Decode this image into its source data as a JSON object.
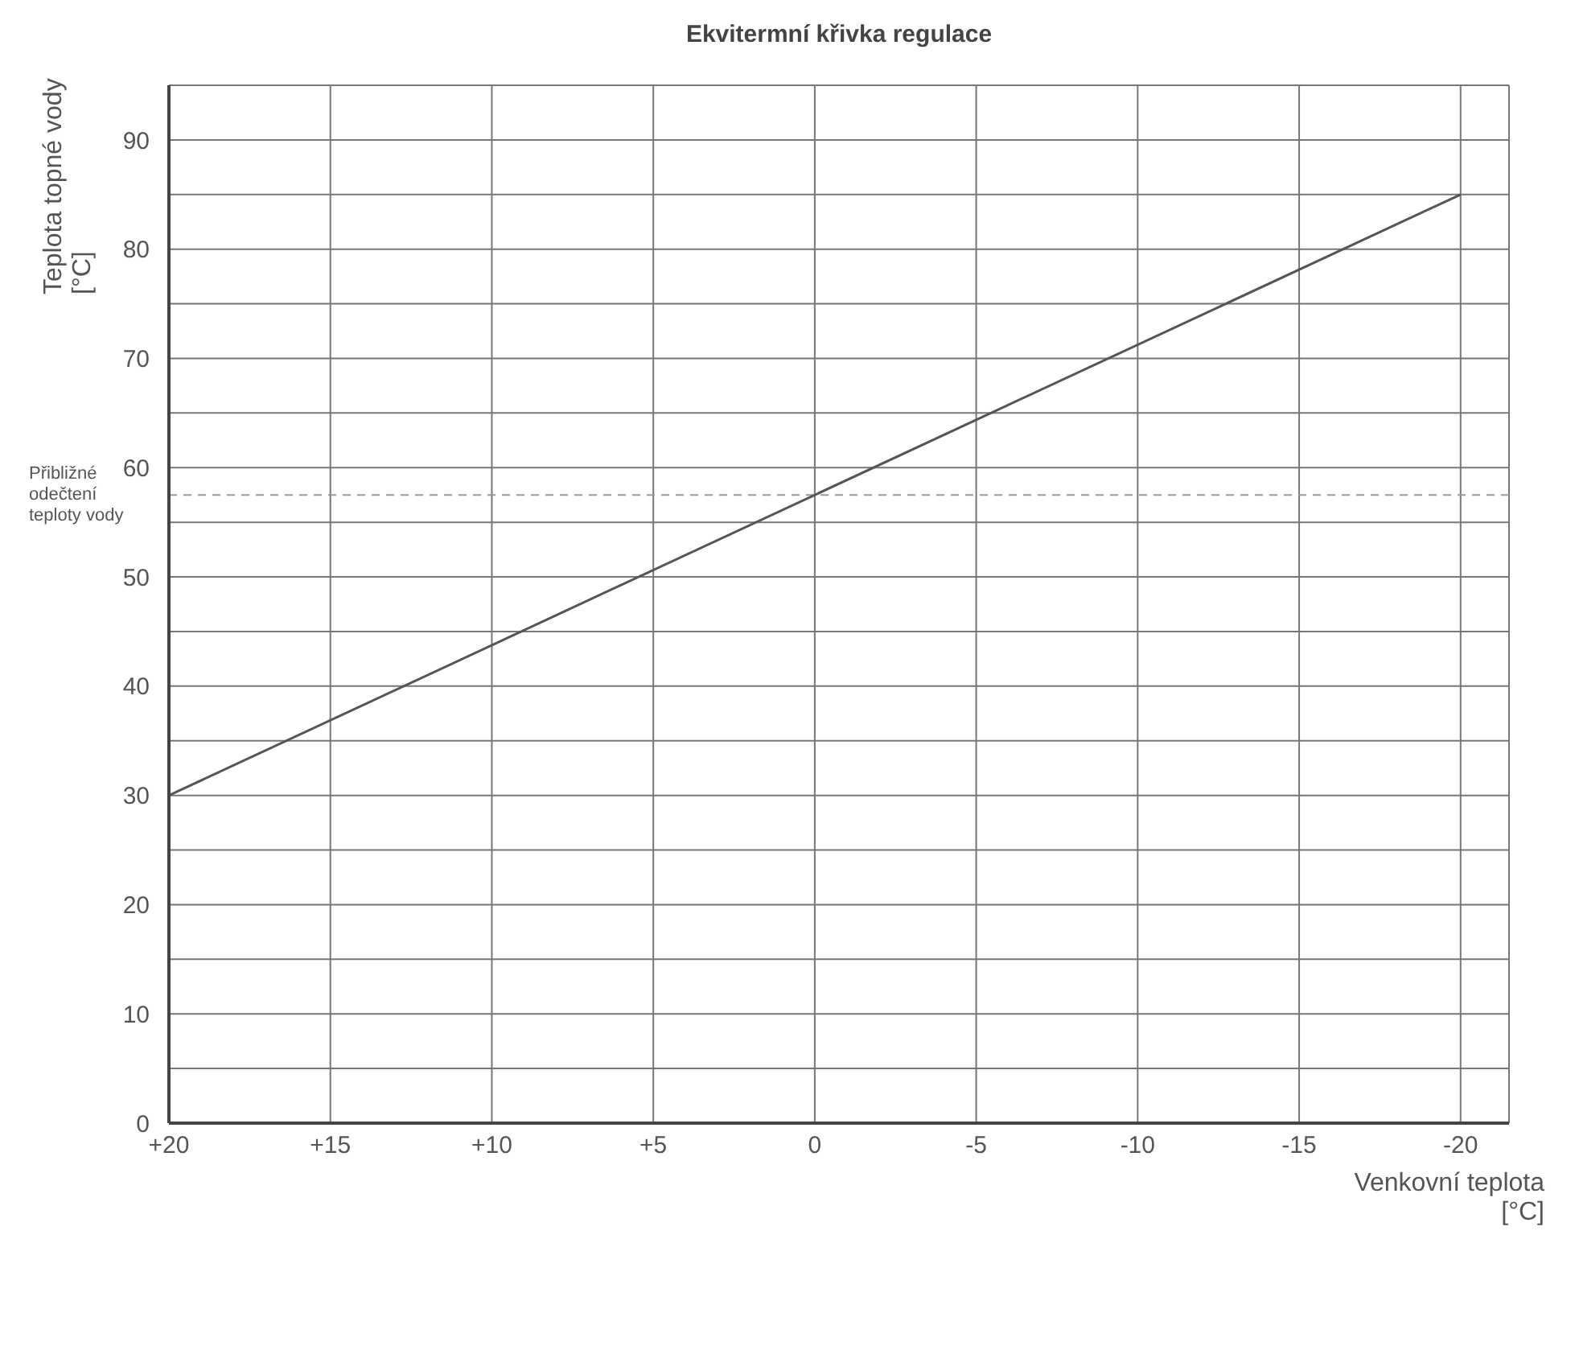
{
  "chart_data": {
    "type": "line",
    "title": "Ekvitermní křivka regulace",
    "xlabel": "Venkovní teplota\n[°C]",
    "ylabel": "Teplota topné vody\n[°C]",
    "x": [
      20,
      -20
    ],
    "series": [
      {
        "color": "#555555",
        "values": [
          30,
          85
        ]
      }
    ],
    "xlim": [
      20,
      -21.5
    ],
    "xticks": [
      {
        "value": 20,
        "label": "+20"
      },
      {
        "value": 15,
        "label": "+15"
      },
      {
        "value": 10,
        "label": "+10"
      },
      {
        "value": 5,
        "label": "+5"
      },
      0,
      -5,
      -10,
      -15,
      -20
    ],
    "ylim": [
      0,
      95
    ],
    "yticks": [
      0,
      {
        "value": 5,
        "label": null
      },
      10,
      {
        "value": 15,
        "label": null
      },
      20,
      {
        "value": 25,
        "label": null
      },
      30,
      {
        "value": 35,
        "label": null
      },
      40,
      {
        "value": 45,
        "label": null
      },
      50,
      {
        "value": 55,
        "label": null
      },
      60,
      {
        "value": 65,
        "label": null
      },
      70,
      {
        "value": 75,
        "label": null
      },
      80,
      {
        "value": 85,
        "label": null
      },
      90
    ],
    "grid": true,
    "marker": "none",
    "line_style": "solid",
    "ref_lines": [
      {
        "axis": "y",
        "value": 57.5,
        "label": "Přibližné\nodečtení\nteploty vody",
        "color": "#999999",
        "line_style": "dashed"
      }
    ]
  }
}
